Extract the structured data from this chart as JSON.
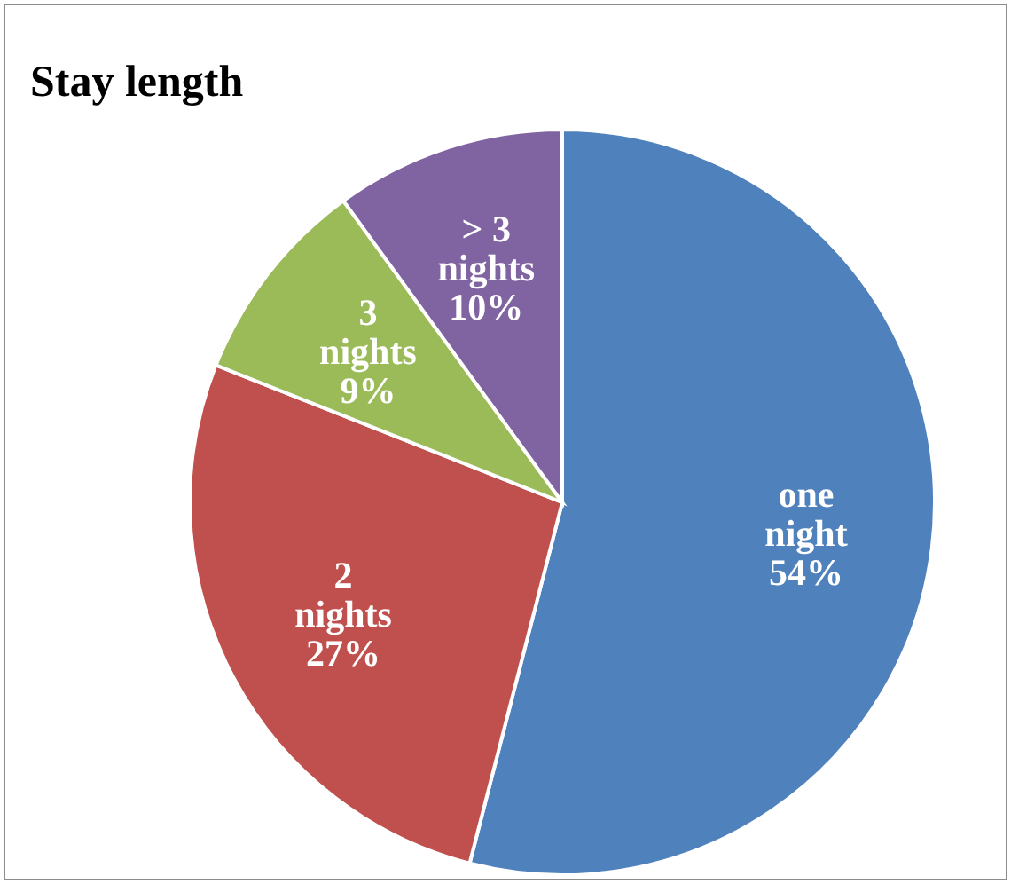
{
  "chart_data": {
    "type": "pie",
    "title": "Stay length",
    "categories": [
      "one night",
      "2 nights",
      "3 nights",
      "> 3 nights"
    ],
    "values": [
      54,
      27,
      9,
      10
    ],
    "colors": [
      "#4f81bd",
      "#c0504d",
      "#9bbb59",
      "#8064a2"
    ],
    "value_labels": [
      "54%",
      "27%",
      "9%",
      "10%"
    ],
    "legend": false
  }
}
